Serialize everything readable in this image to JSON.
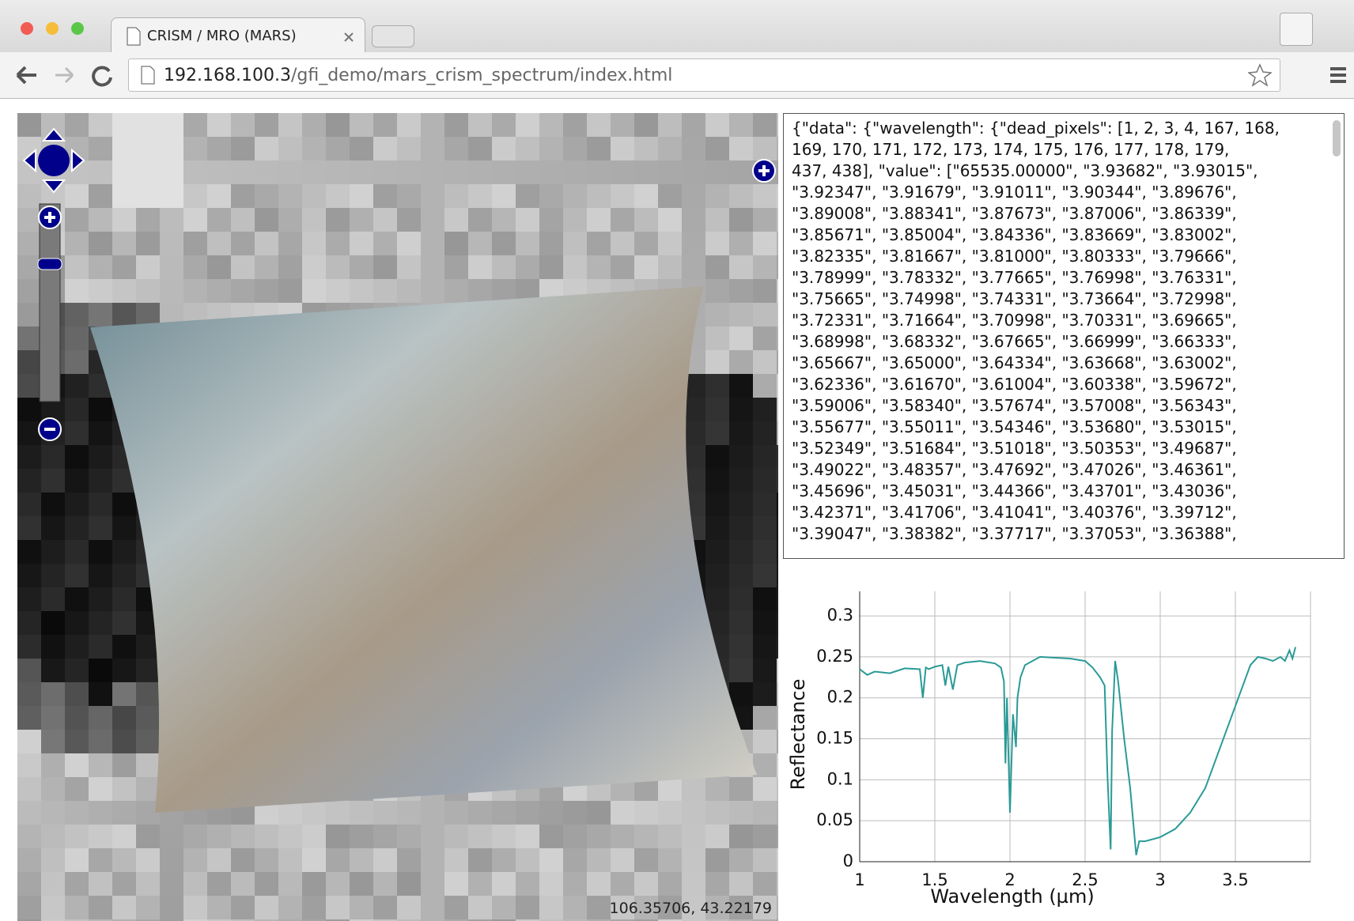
{
  "browser": {
    "tab_title": "CRISM / MRO (MARS)",
    "url_host": "192.168.100.3",
    "url_path": "/gfi_demo/mars_crism_spectrum/index.html"
  },
  "map": {
    "coordinates": "106.35706, 43.22179"
  },
  "response_text": {
    "lines": [
      "{\"data\": {\"wavelength\": {\"dead_pixels\": [1, 2, 3, 4, 167, 168,",
      "169, 170, 171, 172, 173, 174, 175, 176, 177, 178, 179,",
      "437, 438], \"value\": [\"65535.00000\", \"3.93682\", \"3.93015\",",
      "\"3.92347\", \"3.91679\", \"3.91011\", \"3.90344\", \"3.89676\",",
      "\"3.89008\", \"3.88341\", \"3.87673\", \"3.87006\", \"3.86339\",",
      "\"3.85671\", \"3.85004\", \"3.84336\", \"3.83669\", \"3.83002\",",
      "\"3.82335\", \"3.81667\", \"3.81000\", \"3.80333\", \"3.79666\",",
      "\"3.78999\", \"3.78332\", \"3.77665\", \"3.76998\", \"3.76331\",",
      "\"3.75665\", \"3.74998\", \"3.74331\", \"3.73664\", \"3.72998\",",
      "\"3.72331\", \"3.71664\", \"3.70998\", \"3.70331\", \"3.69665\",",
      "\"3.68998\", \"3.68332\", \"3.67665\", \"3.66999\", \"3.66333\",",
      "\"3.65667\", \"3.65000\", \"3.64334\", \"3.63668\", \"3.63002\",",
      "\"3.62336\", \"3.61670\", \"3.61004\", \"3.60338\", \"3.59672\",",
      "\"3.59006\", \"3.58340\", \"3.57674\", \"3.57008\", \"3.56343\",",
      "\"3.55677\", \"3.55011\", \"3.54346\", \"3.53680\", \"3.53015\",",
      "\"3.52349\", \"3.51684\", \"3.51018\", \"3.50353\", \"3.49687\",",
      "\"3.49022\", \"3.48357\", \"3.47692\", \"3.47026\", \"3.46361\",",
      "\"3.45696\", \"3.45031\", \"3.44366\", \"3.43701\", \"3.43036\",",
      "\"3.42371\", \"3.41706\", \"3.41041\", \"3.40376\", \"3.39712\",",
      "\"3.39047\", \"3.38382\", \"3.37717\", \"3.37053\", \"3.36388\","
    ]
  },
  "chart_data": {
    "type": "line",
    "xlabel": "Wavelength (µm)",
    "ylabel": "Reflectance",
    "color": "#2a9a96",
    "x": [
      1.0,
      1.05,
      1.1,
      1.2,
      1.3,
      1.4,
      1.42,
      1.44,
      1.46,
      1.5,
      1.55,
      1.57,
      1.59,
      1.62,
      1.65,
      1.7,
      1.8,
      1.9,
      1.94,
      1.96,
      1.97,
      1.98,
      1.99,
      2.0,
      2.02,
      2.04,
      2.05,
      2.07,
      2.1,
      2.2,
      2.3,
      2.4,
      2.5,
      2.55,
      2.6,
      2.63,
      2.65,
      2.67,
      2.68,
      2.7,
      2.72,
      2.76,
      2.8,
      2.84,
      2.86,
      2.9,
      3.0,
      3.1,
      3.2,
      3.3,
      3.4,
      3.5,
      3.55,
      3.6,
      3.65,
      3.7,
      3.75,
      3.8,
      3.83,
      3.86,
      3.88,
      3.9
    ],
    "values": [
      0.235,
      0.228,
      0.232,
      0.23,
      0.236,
      0.235,
      0.2,
      0.237,
      0.235,
      0.238,
      0.24,
      0.215,
      0.238,
      0.21,
      0.24,
      0.243,
      0.245,
      0.242,
      0.237,
      0.22,
      0.12,
      0.2,
      0.13,
      0.06,
      0.18,
      0.14,
      0.2,
      0.225,
      0.24,
      0.25,
      0.249,
      0.248,
      0.245,
      0.237,
      0.225,
      0.215,
      0.1,
      0.015,
      0.16,
      0.245,
      0.22,
      0.15,
      0.09,
      0.008,
      0.025,
      0.025,
      0.03,
      0.04,
      0.06,
      0.09,
      0.14,
      0.19,
      0.215,
      0.24,
      0.25,
      0.248,
      0.245,
      0.25,
      0.245,
      0.258,
      0.248,
      0.262
    ],
    "xlim": [
      1,
      4
    ],
    "ylim": [
      0,
      0.33
    ],
    "xticks": [
      1,
      1.5,
      2,
      2.5,
      3,
      3.5
    ],
    "yticks": [
      0,
      0.05,
      0.1,
      0.15,
      0.2,
      0.25,
      0.3
    ],
    "grid": true
  }
}
